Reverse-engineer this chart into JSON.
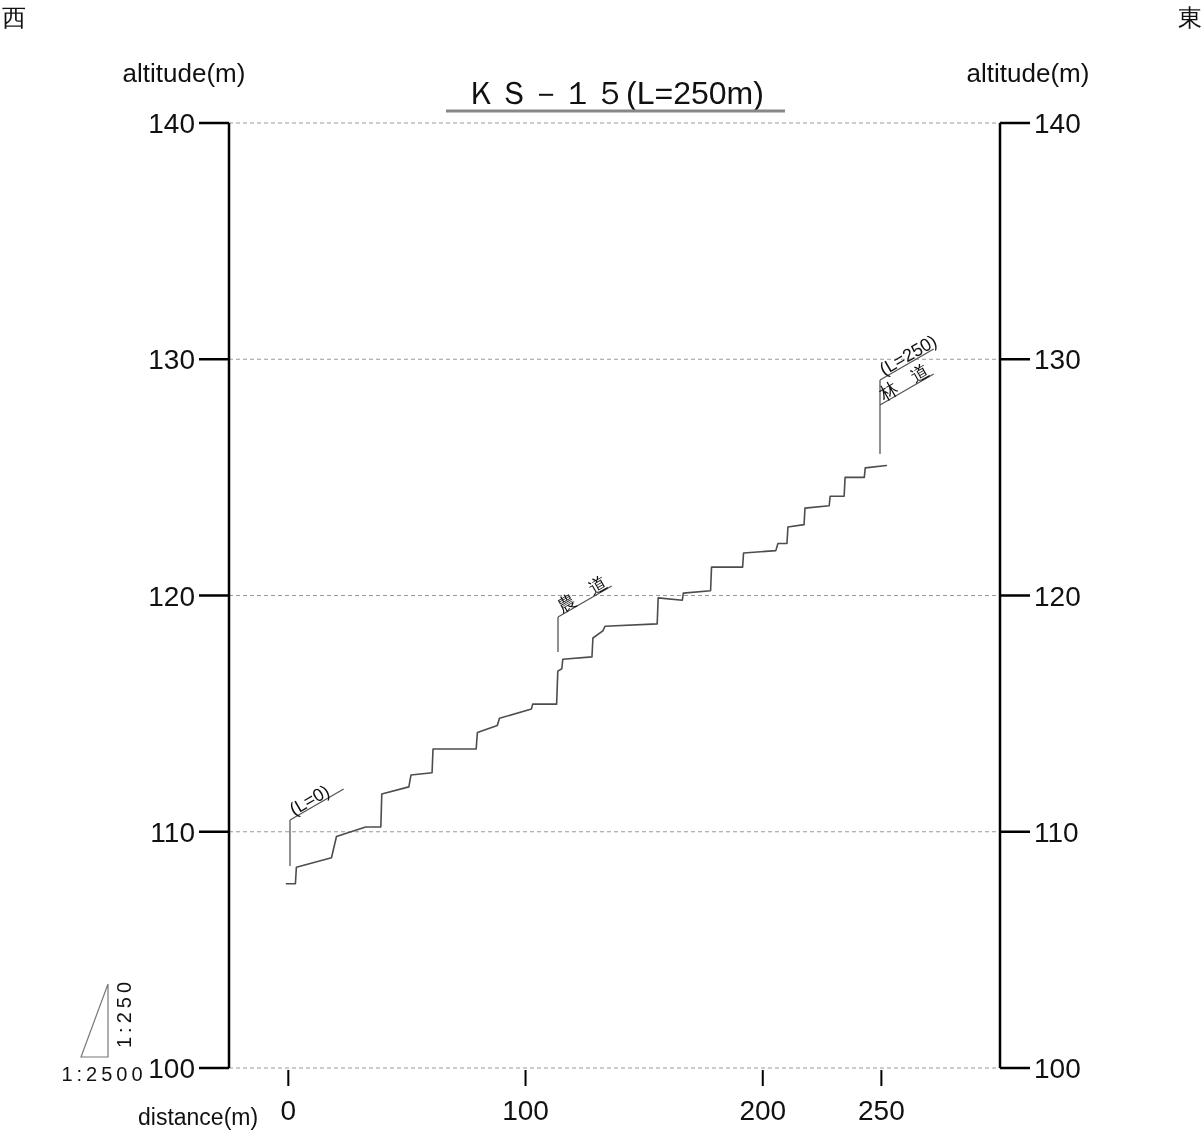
{
  "chart_data": {
    "type": "line",
    "title": "ＫＳ－１５(L=250m)",
    "xlabel": "distance(m)",
    "ylabel": "altitude(m)",
    "y2label": "altitude(m)",
    "x": [
      -0.8,
      3.0,
      3.4,
      18.2,
      20.3,
      32.6,
      39.0,
      39.4,
      50.8,
      51.7,
      60.6,
      61.0,
      79.2,
      79.7,
      88.1,
      89.0,
      102.5,
      103.0,
      113.1,
      113.6,
      115.3,
      115.7,
      128.0,
      128.4,
      132.6,
      133.5,
      155.5,
      155.9,
      166.1,
      166.5,
      178.0,
      178.4,
      191.5,
      191.9,
      205.5,
      206.4,
      210.2,
      210.6,
      217.4,
      217.8,
      228.0,
      228.4,
      234.3,
      234.7,
      242.8,
      243.2,
      252.1
    ],
    "series": [
      {
        "color": "#4d4d4d",
        "values": [
          107.8,
          107.8,
          108.5,
          108.9,
          109.8,
          110.2,
          110.2,
          111.6,
          111.9,
          112.4,
          112.5,
          113.5,
          113.5,
          114.2,
          114.5,
          114.8,
          115.2,
          115.4,
          115.4,
          116.8,
          116.9,
          117.3,
          117.4,
          118.2,
          118.5,
          118.7,
          118.8,
          119.9,
          119.8,
          120.1,
          120.2,
          121.2,
          121.2,
          121.8,
          121.9,
          122.2,
          122.2,
          122.9,
          123.0,
          123.7,
          123.8,
          124.2,
          124.2,
          125.0,
          125.0,
          125.4,
          125.5
        ]
      }
    ],
    "xlim": [
      -25,
      300
    ],
    "xticks": [
      0,
      100,
      200,
      250
    ],
    "ylim": [
      100,
      140
    ],
    "yticks": [
      100,
      110,
      120,
      130,
      140
    ],
    "y2lim": [
      100,
      140
    ],
    "y2ticks": [
      100,
      110,
      120,
      130,
      140
    ],
    "grid": "y",
    "line_style": "solid",
    "marker": "none",
    "annotations": [
      "(L=0)",
      "農　道",
      "(L=250)",
      "林　道",
      "西",
      "東",
      "1:2500",
      "1:250"
    ]
  }
}
